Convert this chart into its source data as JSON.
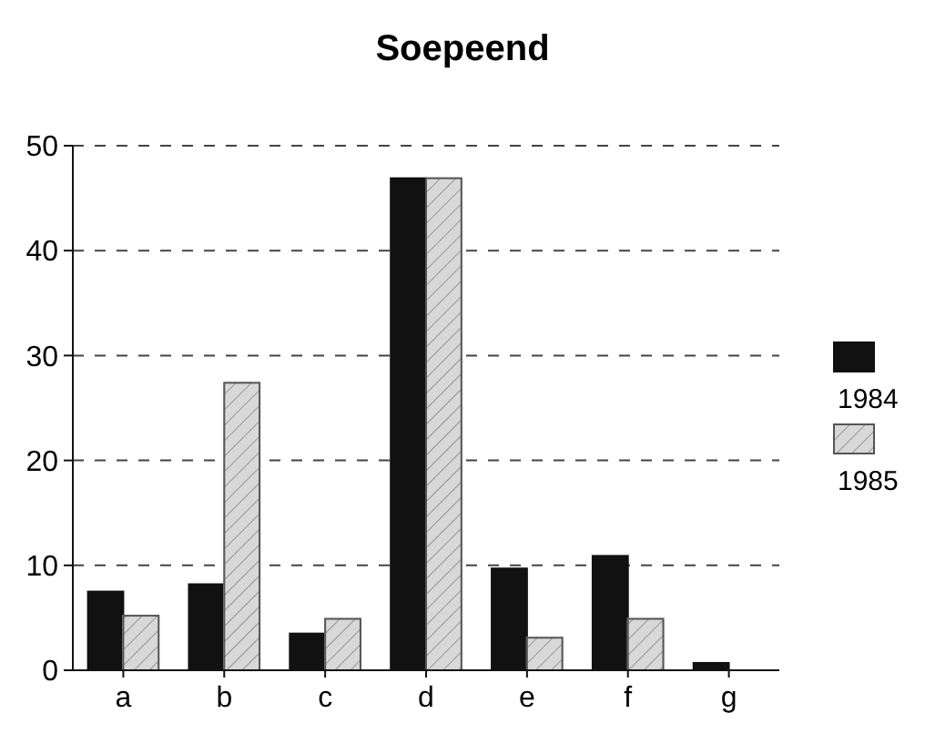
{
  "chart_data": {
    "type": "bar",
    "title": "Soepeend",
    "categories": [
      "a",
      "b",
      "c",
      "d",
      "e",
      "f",
      "g"
    ],
    "series": [
      {
        "name": "1984",
        "color": "#111111",
        "values": [
          7.5,
          8.2,
          3.5,
          46.9,
          9.7,
          10.9,
          0.7
        ]
      },
      {
        "name": "1985",
        "color": "#d8d8d8",
        "values": [
          5.2,
          27.4,
          4.9,
          46.9,
          3.1,
          4.9,
          0
        ]
      }
    ],
    "ylim": [
      0,
      50
    ],
    "yticks": [
      0,
      10,
      20,
      30,
      40,
      50
    ],
    "grid": "y",
    "legend": "right"
  }
}
